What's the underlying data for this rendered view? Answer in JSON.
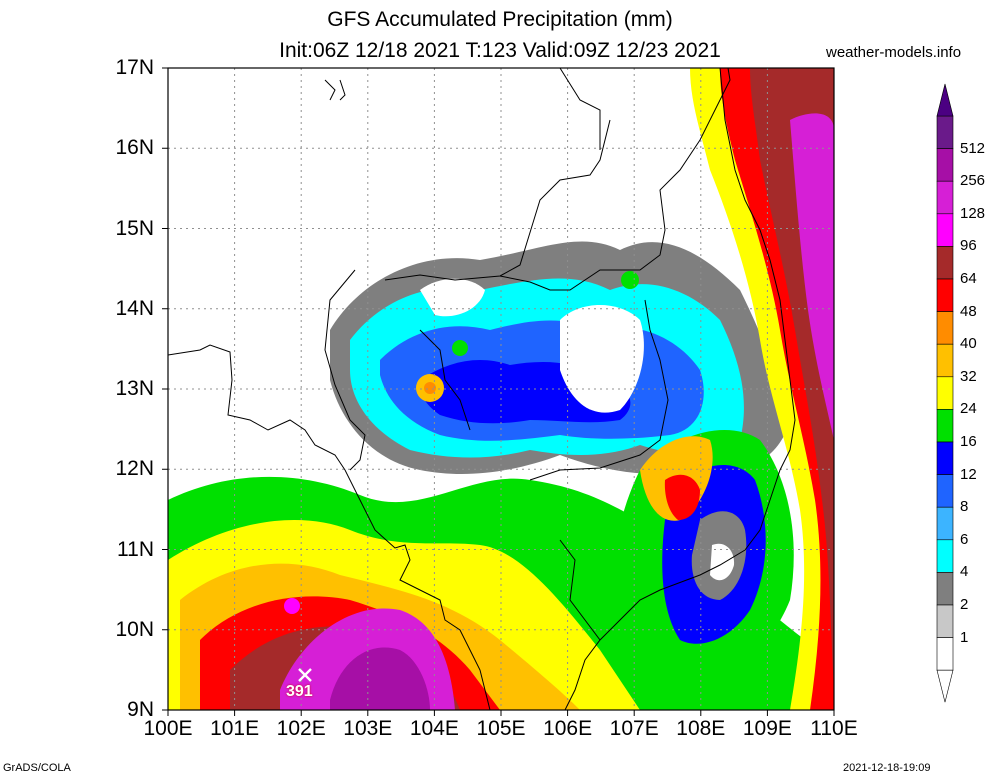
{
  "title": {
    "line1": "GFS Accumulated Precipitation (mm)",
    "line2": "Init:06Z 12/18 2021 T:123 Valid:09Z 12/23 2021"
  },
  "site": "weather-models.info",
  "footer": {
    "left": "GrADS/COLA",
    "right": "2021-12-18-19:09"
  },
  "axes": {
    "y_ticks": [
      "17N",
      "16N",
      "15N",
      "14N",
      "13N",
      "12N",
      "11N",
      "10N",
      "9N"
    ],
    "x_ticks": [
      "100E",
      "101E",
      "102E",
      "103E",
      "104E",
      "105E",
      "106E",
      "107E",
      "108E",
      "109E",
      "110E"
    ]
  },
  "colorbar": {
    "labels": [
      "512",
      "256",
      "128",
      "96",
      "64",
      "48",
      "40",
      "32",
      "24",
      "16",
      "12",
      "8",
      "6",
      "4",
      "2",
      "1"
    ],
    "colors": [
      "#6a1a8a",
      "#a60fa6",
      "#d61fd6",
      "#ff00ff",
      "#a52a2a",
      "#ff0000",
      "#ff8c00",
      "#ffc000",
      "#ffff00",
      "#00e000",
      "#0000ff",
      "#1f64ff",
      "#3cb4ff",
      "#00ffff",
      "#7f7f7f",
      "#c8c8c8",
      "#ffffff"
    ]
  },
  "max_point": {
    "label": "391"
  }
}
